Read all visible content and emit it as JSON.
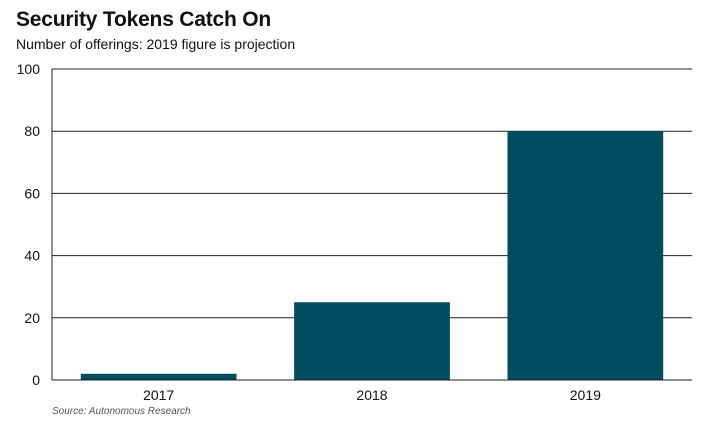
{
  "header": {
    "title": "Security Tokens Catch On",
    "subtitle": "Number of offerings: 2019 figure is projection"
  },
  "footer": {
    "source": "Source: Autonomous Research"
  },
  "colors": {
    "bar": "#004d62",
    "grid": "#222222",
    "text": "#111111"
  },
  "chart_data": {
    "type": "bar",
    "title": "Security Tokens Catch On",
    "subtitle": "Number of offerings: 2019 figure is projection",
    "xlabel": "",
    "ylabel": "",
    "categories": [
      "2017",
      "2018",
      "2019"
    ],
    "values": [
      2,
      25,
      80
    ],
    "ylim": [
      0,
      100
    ],
    "yticks": [
      0,
      20,
      40,
      60,
      80,
      100
    ],
    "grid": true,
    "legend": "none"
  }
}
